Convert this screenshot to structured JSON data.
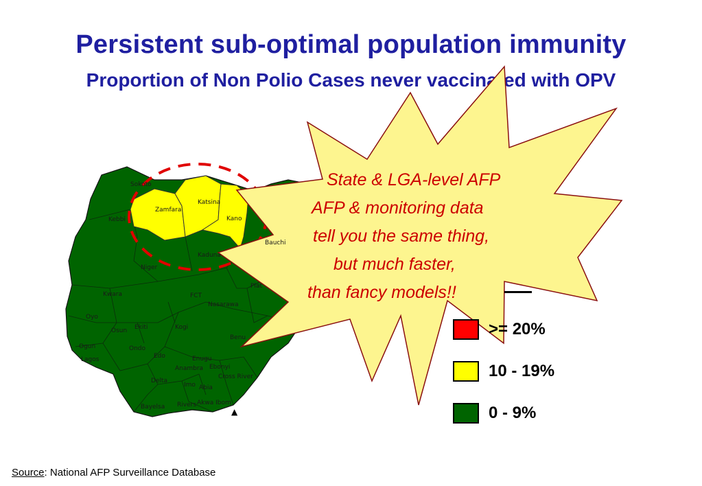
{
  "title": "Persistent sub-optimal population immunity",
  "subtitle": "Proportion of Non Polio Cases never vaccinated with OPV",
  "colors": {
    "title": "#1f1fa0",
    "high": "#ff0000",
    "mid": "#ffff00",
    "low": "#006400",
    "callout_fill": "#fdf58f",
    "callout_text": "#cc0000",
    "circle": "#e00000"
  },
  "callout": {
    "lines": [
      "State & LGA-level AFP",
      "AFP & monitoring data",
      "tell you the same thing,",
      "but much faster,",
      "than fancy models!!"
    ]
  },
  "legend": [
    {
      "label": ">= 20%",
      "color_key": "high"
    },
    {
      "label": "10 - 19%",
      "color_key": "mid"
    },
    {
      "label": "0 - 9%",
      "color_key": "low"
    }
  ],
  "map": {
    "state_labels": [
      "Sokoto",
      "Zamfara",
      "Katsina",
      "Kano",
      "Kebbi",
      "Kaduna",
      "Bauchi",
      "Niger",
      "Plat",
      "Kwara",
      "FCT",
      "Nasarawa",
      "Oyo",
      "Osun",
      "Ekiti",
      "Kogi",
      "Ogun",
      "Ondo",
      "Benu",
      "Lagos",
      "Edo",
      "Enugu",
      "Ebonyi",
      "Anambra",
      "Cross River",
      "Delta",
      "Imo",
      "Abia",
      "Rivers",
      "Akwa Ibom",
      "Bayelsa"
    ],
    "highlighted_states": [
      "Zamfara",
      "Katsina",
      "Kano"
    ]
  },
  "source": {
    "label": "Source",
    "text": ":  National AFP Surveillance Database"
  }
}
